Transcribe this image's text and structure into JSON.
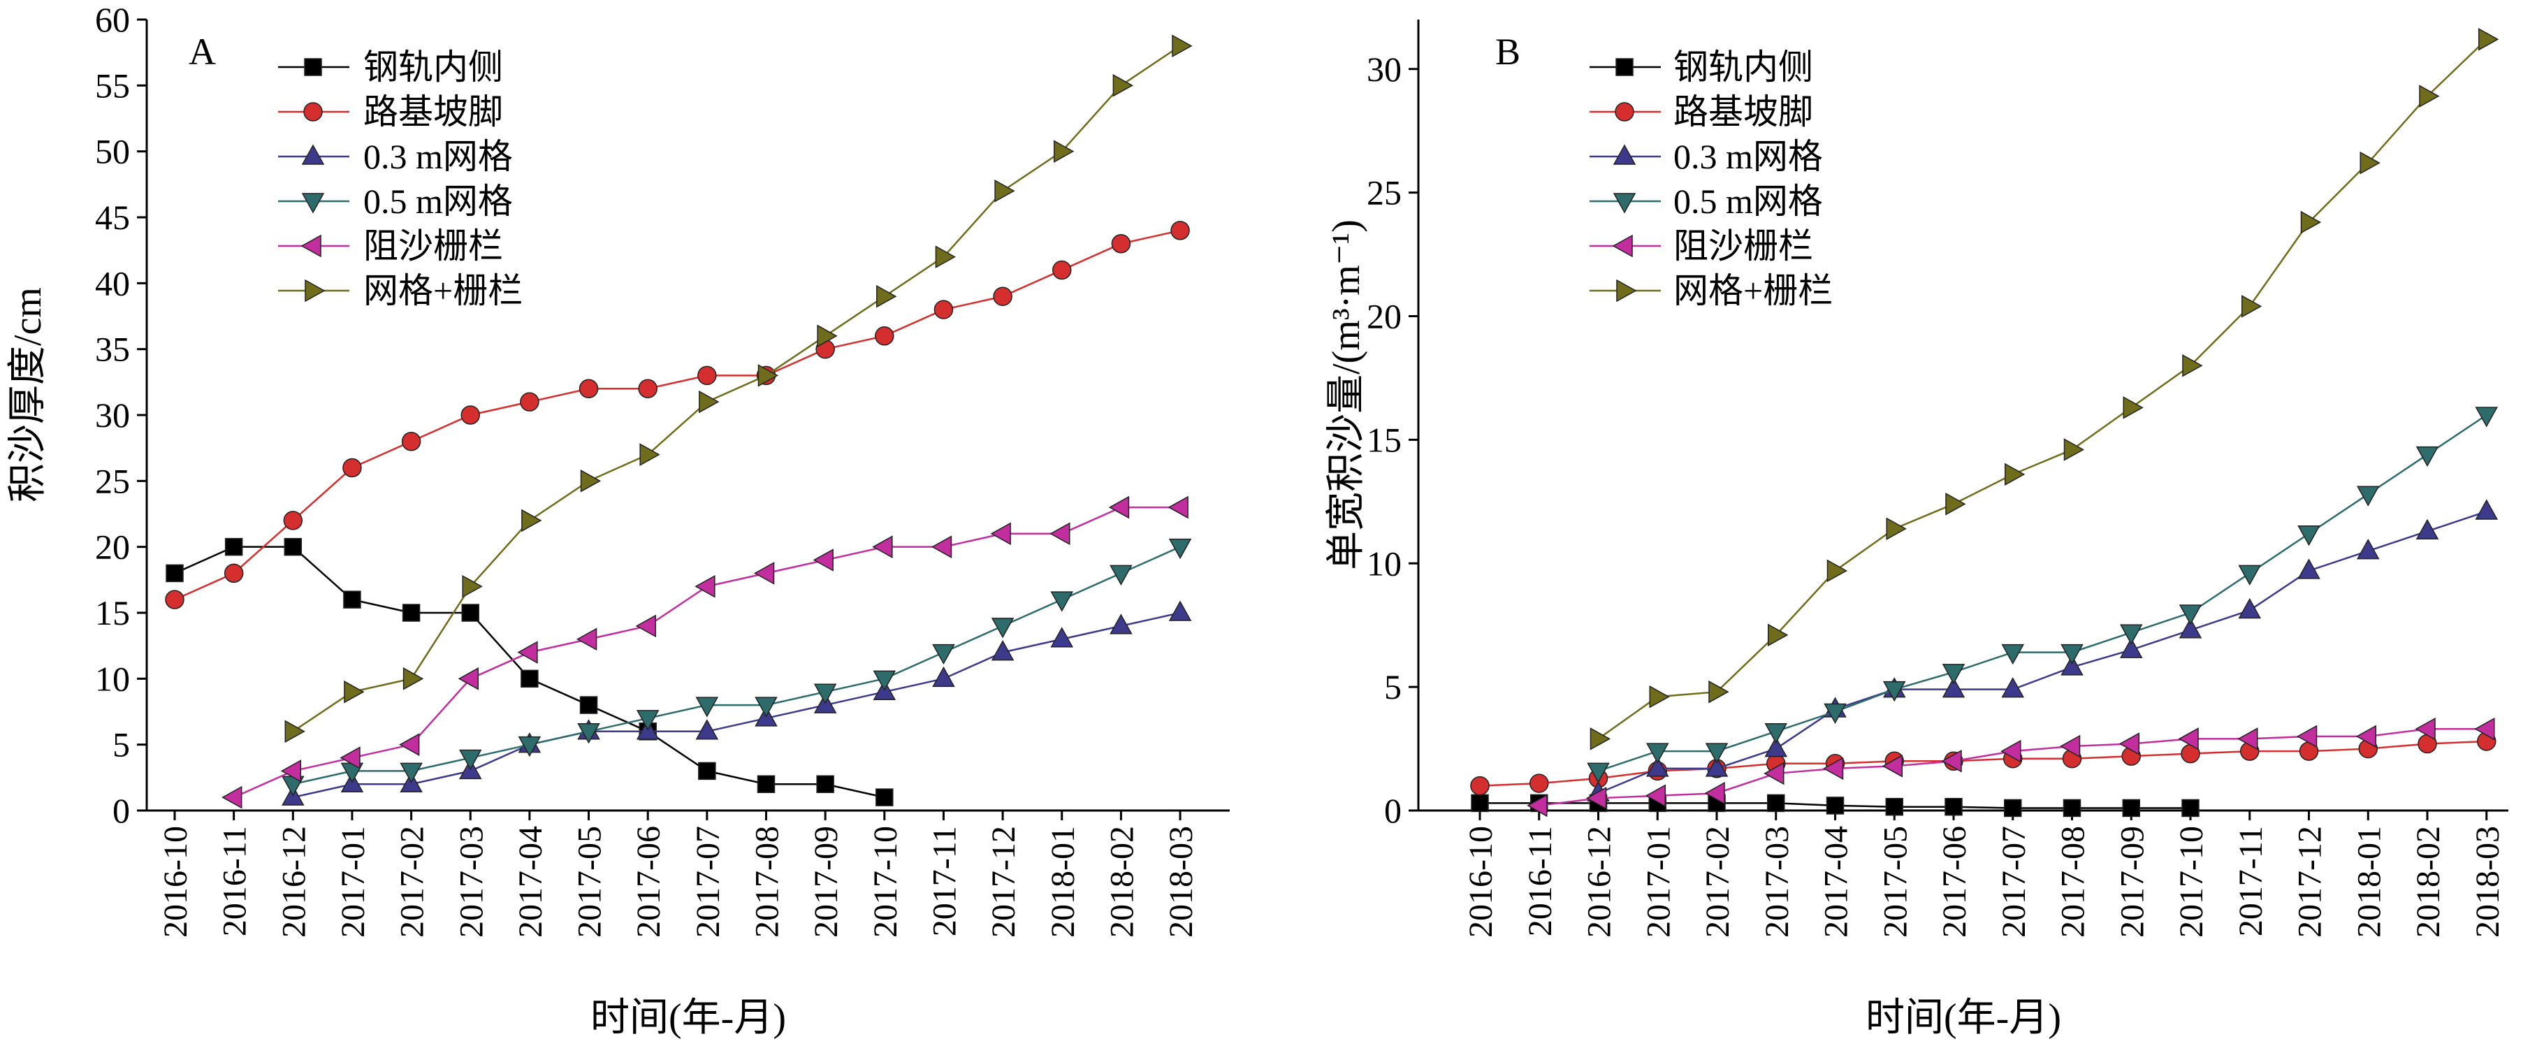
{
  "chart_data": [
    {
      "type": "line",
      "panel_label": "A",
      "xlabel": "时间(年-月)",
      "ylabel": "积沙厚度/cm",
      "ylim": [
        0,
        60
      ],
      "yticks": [
        0,
        5,
        10,
        15,
        20,
        25,
        30,
        35,
        40,
        45,
        50,
        55,
        60
      ],
      "categories": [
        "2016-10",
        "2016-11",
        "2016-12",
        "2017-01",
        "2017-02",
        "2017-03",
        "2017-04",
        "2017-05",
        "2017-06",
        "2017-07",
        "2017-08",
        "2017-09",
        "2017-10",
        "2017-11",
        "2017-12",
        "2018-01",
        "2018-02",
        "2018-03"
      ],
      "legend_position": "top-left",
      "series": [
        {
          "name": "钢轨内侧",
          "color": "#000000",
          "marker": "square",
          "values": [
            18,
            20,
            20,
            16,
            15,
            15,
            10,
            8,
            6,
            3,
            2,
            2,
            1,
            null,
            null,
            null,
            null,
            null
          ]
        },
        {
          "name": "路基坡脚",
          "color": "#d42e2e",
          "marker": "circle",
          "values": [
            16,
            18,
            22,
            26,
            28,
            30,
            31,
            32,
            32,
            33,
            33,
            35,
            36,
            38,
            39,
            41,
            43,
            44
          ]
        },
        {
          "name": "0.3 m网格",
          "color": "#3d3a8c",
          "marker": "triangle-up",
          "values": [
            null,
            null,
            1,
            2,
            2,
            3,
            5,
            6,
            6,
            6,
            7,
            8,
            9,
            10,
            12,
            13,
            14,
            15
          ]
        },
        {
          "name": "0.5 m网格",
          "color": "#2e6b6b",
          "marker": "triangle-down",
          "values": [
            null,
            null,
            2,
            3,
            3,
            4,
            5,
            6,
            7,
            8,
            8,
            9,
            10,
            12,
            14,
            16,
            18,
            20
          ]
        },
        {
          "name": "阻沙栅栏",
          "color": "#c22e9e",
          "marker": "triangle-left",
          "values": [
            null,
            1,
            3,
            4,
            5,
            10,
            12,
            13,
            14,
            17,
            18,
            19,
            20,
            20,
            21,
            21,
            23,
            23
          ]
        },
        {
          "name": "网格+栅栏",
          "color": "#6f6c1c",
          "marker": "triangle-right",
          "values": [
            null,
            null,
            6,
            9,
            10,
            17,
            22,
            25,
            27,
            31,
            33,
            36,
            39,
            42,
            47,
            50,
            55,
            58
          ]
        }
      ]
    },
    {
      "type": "line",
      "panel_label": "B",
      "xlabel": "时间(年-月)",
      "ylabel": "单宽积沙量/(m³·m⁻¹)",
      "ylim": [
        0,
        32
      ],
      "yticks": [
        0,
        5,
        10,
        15,
        20,
        25,
        30
      ],
      "categories": [
        "2016-10",
        "2016-11",
        "2016-12",
        "2017-01",
        "2017-02",
        "2017-03",
        "2017-04",
        "2017-05",
        "2017-06",
        "2017-07",
        "2017-08",
        "2017-09",
        "2017-10",
        "2017-11",
        "2017-12",
        "2018-01",
        "2018-02",
        "2018-03"
      ],
      "legend_position": "top-left",
      "series": [
        {
          "name": "钢轨内侧",
          "color": "#000000",
          "marker": "square",
          "values": [
            0.3,
            0.3,
            0.3,
            0.3,
            0.3,
            0.3,
            0.2,
            0.15,
            0.15,
            0.1,
            0.1,
            0.1,
            0.1,
            null,
            null,
            null,
            null,
            null
          ]
        },
        {
          "name": "路基坡脚",
          "color": "#d42e2e",
          "marker": "circle",
          "values": [
            1.0,
            1.1,
            1.3,
            1.6,
            1.7,
            1.9,
            1.9,
            2.0,
            2.0,
            2.1,
            2.1,
            2.2,
            2.3,
            2.4,
            2.4,
            2.5,
            2.7,
            2.8
          ]
        },
        {
          "name": "0.3 m网格",
          "color": "#3d3a8c",
          "marker": "triangle-up",
          "values": [
            null,
            null,
            0.7,
            1.7,
            1.7,
            2.5,
            4.1,
            4.9,
            4.9,
            4.9,
            5.8,
            6.5,
            7.3,
            8.1,
            9.7,
            10.5,
            11.3,
            12.1
          ]
        },
        {
          "name": "0.5 m网格",
          "color": "#2e6b6b",
          "marker": "triangle-down",
          "values": [
            null,
            null,
            1.6,
            2.4,
            2.4,
            3.2,
            4.0,
            4.9,
            5.6,
            6.4,
            6.4,
            7.2,
            8.0,
            9.6,
            11.2,
            12.8,
            14.4,
            16.0
          ]
        },
        {
          "name": "阻沙栅栏",
          "color": "#c22e9e",
          "marker": "triangle-left",
          "values": [
            null,
            0.2,
            0.5,
            0.6,
            0.7,
            1.5,
            1.7,
            1.8,
            2.0,
            2.4,
            2.6,
            2.7,
            2.9,
            2.9,
            3.0,
            3.0,
            3.3,
            3.3
          ]
        },
        {
          "name": "网格+栅栏",
          "color": "#6f6c1c",
          "marker": "triangle-right",
          "values": [
            null,
            null,
            2.9,
            4.6,
            4.8,
            7.1,
            9.7,
            11.4,
            12.4,
            13.6,
            14.6,
            16.3,
            18.0,
            20.4,
            23.8,
            26.2,
            28.9,
            31.2
          ]
        }
      ]
    }
  ]
}
